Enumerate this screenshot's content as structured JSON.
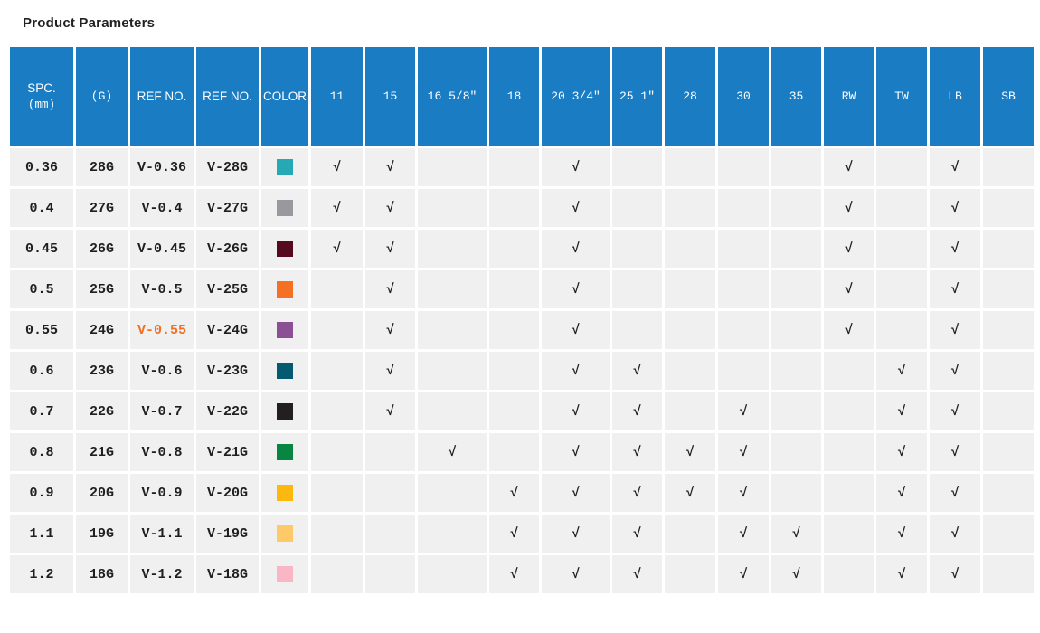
{
  "title": "Product Parameters",
  "colors": {
    "header_bg": "#1a7dc4",
    "header_text": "#ffffff",
    "cell_bg": "#f0f0f0",
    "body_text": "#1f1f1f",
    "ref_text": "#414141",
    "highlight_text": "#f36f21",
    "check_color": "#2e2e2e",
    "page_bg": "#ffffff"
  },
  "table": {
    "check_glyph": "√",
    "columns": [
      {
        "id": "spc",
        "label": "SPC.",
        "sublabel": "(mm)",
        "font": "sans"
      },
      {
        "id": "gauge",
        "label": "(G)",
        "font": "mono"
      },
      {
        "id": "ref-no",
        "label": "REF NO.",
        "font": "sans"
      },
      {
        "id": "ref-no-2",
        "label": "REF NO.",
        "font": "sans"
      },
      {
        "id": "color",
        "label": "COLOR",
        "font": "sans"
      },
      {
        "id": "11",
        "label": "11",
        "font": "mono"
      },
      {
        "id": "15",
        "label": "15",
        "font": "mono"
      },
      {
        "id": "16-5-8in",
        "label": "16 5/8″",
        "font": "mono"
      },
      {
        "id": "18",
        "label": "18",
        "font": "mono"
      },
      {
        "id": "20-3-4in",
        "label": "20 3/4″",
        "font": "mono"
      },
      {
        "id": "25-1in",
        "label": "25 1″",
        "font": "mono"
      },
      {
        "id": "28",
        "label": "28",
        "font": "mono"
      },
      {
        "id": "30",
        "label": "30",
        "font": "mono"
      },
      {
        "id": "35",
        "label": "35",
        "font": "mono"
      },
      {
        "id": "rw",
        "label": "RW",
        "font": "mono"
      },
      {
        "id": "tw",
        "label": "TW",
        "font": "mono"
      },
      {
        "id": "lb",
        "label": "LB",
        "font": "mono"
      },
      {
        "id": "sb",
        "label": "SB",
        "font": "mono"
      }
    ],
    "rows": [
      {
        "spc": "0.36",
        "gauge": "28G",
        "ref_spc": "V-0.36",
        "ref_gauge": "V-28G",
        "swatch": "#26a9b4",
        "highlight": false,
        "checks": [
          1,
          1,
          0,
          0,
          1,
          0,
          0,
          0,
          0,
          1,
          0,
          1,
          0
        ]
      },
      {
        "spc": "0.4",
        "gauge": "27G",
        "ref_spc": "V-0.4",
        "ref_gauge": "V-27G",
        "swatch": "#97999c",
        "highlight": false,
        "checks": [
          1,
          1,
          0,
          0,
          1,
          0,
          0,
          0,
          0,
          1,
          0,
          1,
          0
        ]
      },
      {
        "spc": "0.45",
        "gauge": "26G",
        "ref_spc": "V-0.45",
        "ref_gauge": "V-26G",
        "swatch": "#560a1e",
        "highlight": false,
        "checks": [
          1,
          1,
          0,
          0,
          1,
          0,
          0,
          0,
          0,
          1,
          0,
          1,
          0
        ]
      },
      {
        "spc": "0.5",
        "gauge": "25G",
        "ref_spc": "V-0.5",
        "ref_gauge": "V-25G",
        "swatch": "#f37025",
        "highlight": false,
        "checks": [
          0,
          1,
          0,
          0,
          1,
          0,
          0,
          0,
          0,
          1,
          0,
          1,
          0
        ]
      },
      {
        "spc": "0.55",
        "gauge": "24G",
        "ref_spc": "V-0.55",
        "ref_gauge": "V-24G",
        "swatch": "#8b5094",
        "highlight": true,
        "checks": [
          0,
          1,
          0,
          0,
          1,
          0,
          0,
          0,
          0,
          1,
          0,
          1,
          0
        ]
      },
      {
        "spc": "0.6",
        "gauge": "23G",
        "ref_spc": "V-0.6",
        "ref_gauge": "V-23G",
        "swatch": "#055a71",
        "highlight": false,
        "checks": [
          0,
          1,
          0,
          0,
          1,
          1,
          0,
          0,
          0,
          0,
          1,
          1,
          0
        ]
      },
      {
        "spc": "0.7",
        "gauge": "22G",
        "ref_spc": "V-0.7",
        "ref_gauge": "V-22G",
        "swatch": "#231e20",
        "highlight": false,
        "checks": [
          0,
          1,
          0,
          0,
          1,
          1,
          0,
          1,
          0,
          0,
          1,
          1,
          0
        ]
      },
      {
        "spc": "0.8",
        "gauge": "21G",
        "ref_spc": "V-0.8",
        "ref_gauge": "V-21G",
        "swatch": "#088540",
        "highlight": false,
        "checks": [
          0,
          0,
          1,
          0,
          1,
          1,
          1,
          1,
          0,
          0,
          1,
          1,
          0
        ]
      },
      {
        "spc": "0.9",
        "gauge": "20G",
        "ref_spc": "V-0.9",
        "ref_gauge": "V-20G",
        "swatch": "#fcb810",
        "highlight": false,
        "checks": [
          0,
          0,
          0,
          1,
          1,
          1,
          1,
          1,
          0,
          0,
          1,
          1,
          0
        ]
      },
      {
        "spc": "1.1",
        "gauge": "19G",
        "ref_spc": "V-1.1",
        "ref_gauge": "V-19G",
        "swatch": "#fdca67",
        "highlight": false,
        "checks": [
          0,
          0,
          0,
          1,
          1,
          1,
          0,
          1,
          1,
          0,
          1,
          1,
          0
        ]
      },
      {
        "spc": "1.2",
        "gauge": "18G",
        "ref_spc": "V-1.2",
        "ref_gauge": "V-18G",
        "swatch": "#f9b6c6",
        "highlight": false,
        "checks": [
          0,
          0,
          0,
          1,
          1,
          1,
          0,
          1,
          1,
          0,
          1,
          1,
          0
        ]
      }
    ]
  }
}
